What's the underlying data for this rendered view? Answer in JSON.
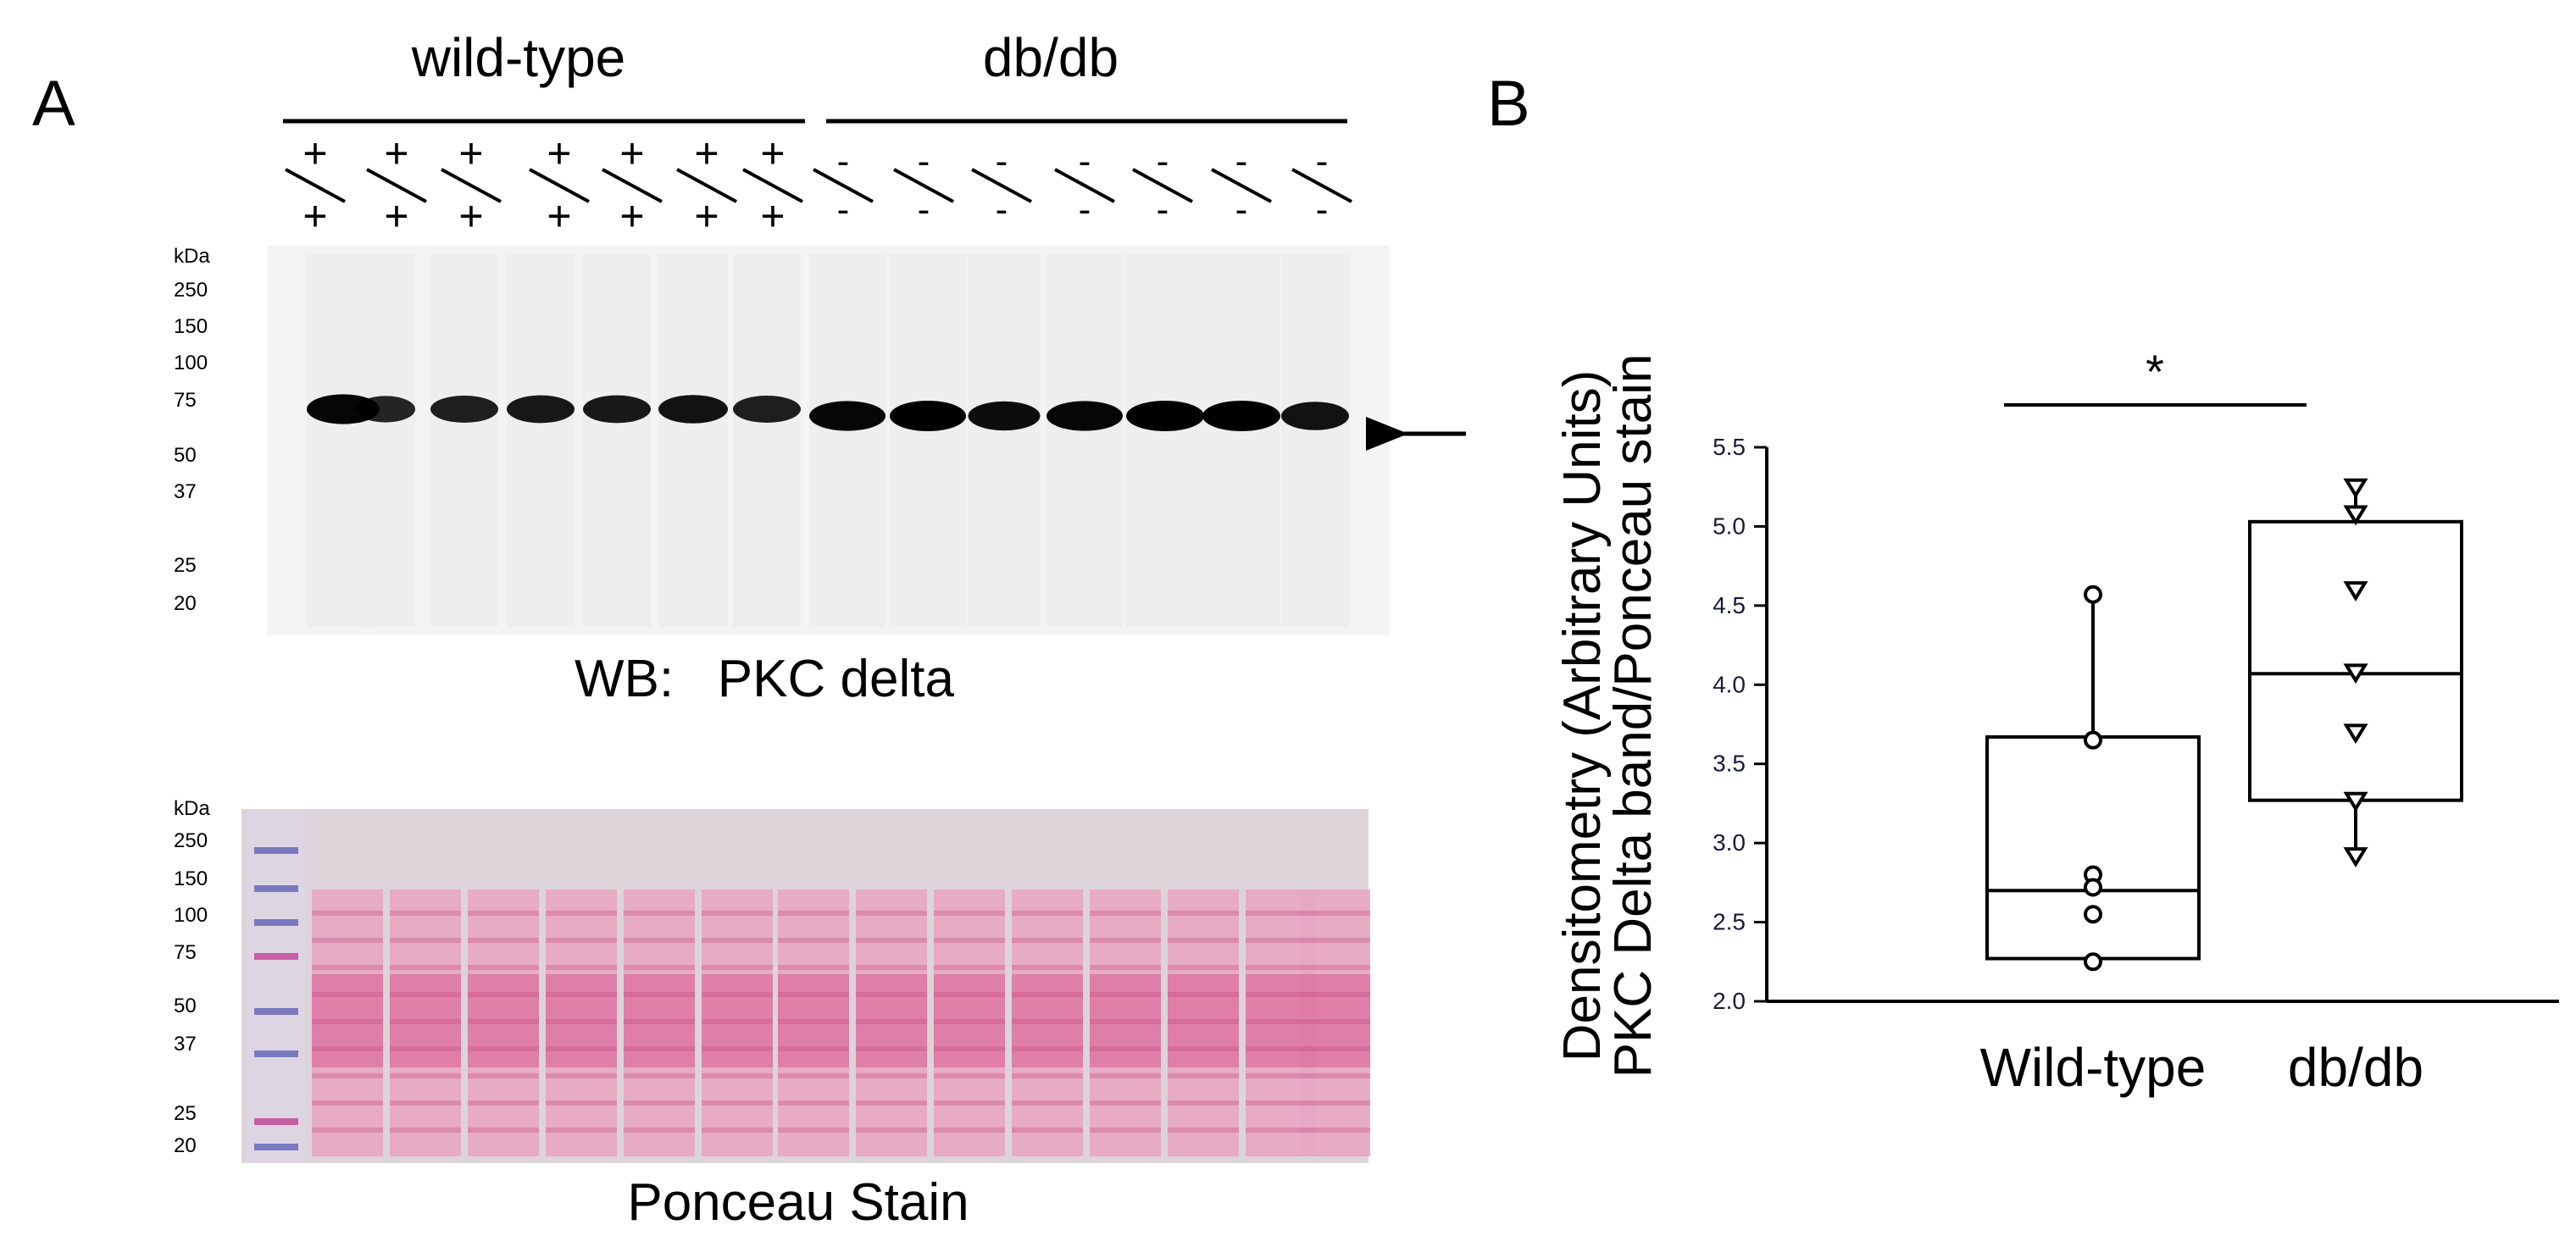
{
  "panel_a": {
    "label": "A",
    "group1_label": "wild-type",
    "group2_label": "db/db",
    "genotype_wt": {
      "top": "+",
      "bottom": "+"
    },
    "genotype_db": {
      "top": "-",
      "bottom": "-"
    },
    "blot": {
      "kda_label": "kDa",
      "markers": [
        "250",
        "150",
        "100",
        "75",
        "50",
        "37",
        "25",
        "20"
      ],
      "caption": "WB:   PKC delta",
      "band_intensities": [
        0.95,
        0.7,
        0.75,
        0.8,
        0.8,
        0.85,
        0.75,
        0.95,
        1.0,
        0.9,
        0.95,
        1.0,
        1.0,
        0.85
      ]
    },
    "ponceau": {
      "kda_label": "kDa",
      "markers": [
        "250",
        "150",
        "100",
        "75",
        "50",
        "37",
        "25",
        "20"
      ],
      "caption": "Ponceau Stain"
    }
  },
  "chart_data": {
    "type": "box",
    "panel_label": "B",
    "title": "",
    "xlabel": "",
    "ylabel_line1": "Densitometry (Arbitrary Units)",
    "ylabel_line2": "PKC Delta band/Ponceau stain",
    "ylim": [
      2.0,
      5.5
    ],
    "yticks": [
      "2.0",
      "2.5",
      "3.0",
      "3.5",
      "4.0",
      "4.5",
      "5.0",
      "5.5"
    ],
    "categories": [
      "Wild-type",
      "db/db"
    ],
    "boxes": [
      {
        "category": "Wild-type",
        "q1": 2.27,
        "median": 2.7,
        "q3": 3.67,
        "whisker_low": 2.25,
        "whisker_high": 4.57,
        "points": [
          4.57,
          3.65,
          2.8,
          2.72,
          2.55,
          2.25
        ],
        "marker": "circle"
      },
      {
        "category": "db/db",
        "q1": 3.27,
        "median": 4.07,
        "q3": 5.03,
        "whisker_low": 2.9,
        "whisker_high": 5.25,
        "points": [
          5.25,
          5.08,
          4.6,
          4.08,
          3.7,
          3.27,
          2.92
        ],
        "marker": "triangle-down"
      }
    ],
    "significance": "*",
    "grid": false
  }
}
